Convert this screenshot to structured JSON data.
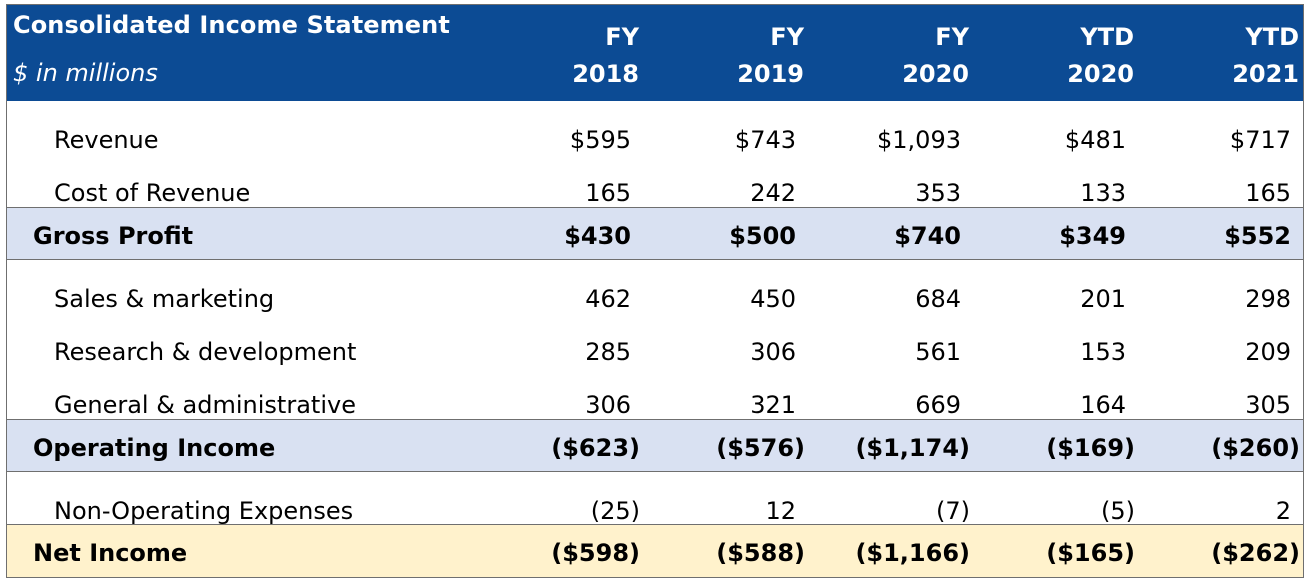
{
  "header": {
    "title": "Consolidated Income Statement",
    "subtitle": "$ in millions",
    "columns": [
      {
        "line1": "FY",
        "line2": "2018"
      },
      {
        "line1": "FY",
        "line2": "2019"
      },
      {
        "line1": "FY",
        "line2": "2020"
      },
      {
        "line1": "YTD",
        "line2": "2020"
      },
      {
        "line1": "YTD",
        "line2": "2021"
      }
    ]
  },
  "rows": [
    {
      "label": "Revenue",
      "values": [
        "$595",
        "$743",
        "$1,093",
        "$481",
        "$717"
      ]
    },
    {
      "label": "Cost of Revenue",
      "values": [
        "165",
        "242",
        "353",
        "133",
        "165"
      ]
    },
    {
      "label": "Gross Profit",
      "values": [
        "$430",
        "$500",
        "$740",
        "$349",
        "$552"
      ]
    },
    {
      "label": "Sales & marketing",
      "values": [
        "462",
        "450",
        "684",
        "201",
        "298"
      ]
    },
    {
      "label": "Research & development",
      "values": [
        "285",
        "306",
        "561",
        "153",
        "209"
      ]
    },
    {
      "label": "General & administrative",
      "values": [
        "306",
        "321",
        "669",
        "164",
        "305"
      ]
    },
    {
      "label": "Operating Income",
      "values": [
        "($623)",
        "($576)",
        "($1,174)",
        "($169)",
        "($260)"
      ]
    },
    {
      "label": "Non-Operating Expenses",
      "values": [
        "(25)",
        "12",
        "(7)",
        "(5)",
        "2"
      ]
    },
    {
      "label": "Net Income",
      "values": [
        "($598)",
        "($588)",
        "($1,166)",
        "($165)",
        "($262)"
      ]
    }
  ],
  "colors": {
    "header_bg": "#0c4b94",
    "subtotal_bg": "#d9e1f2",
    "total_bg": "#fff2cc"
  }
}
